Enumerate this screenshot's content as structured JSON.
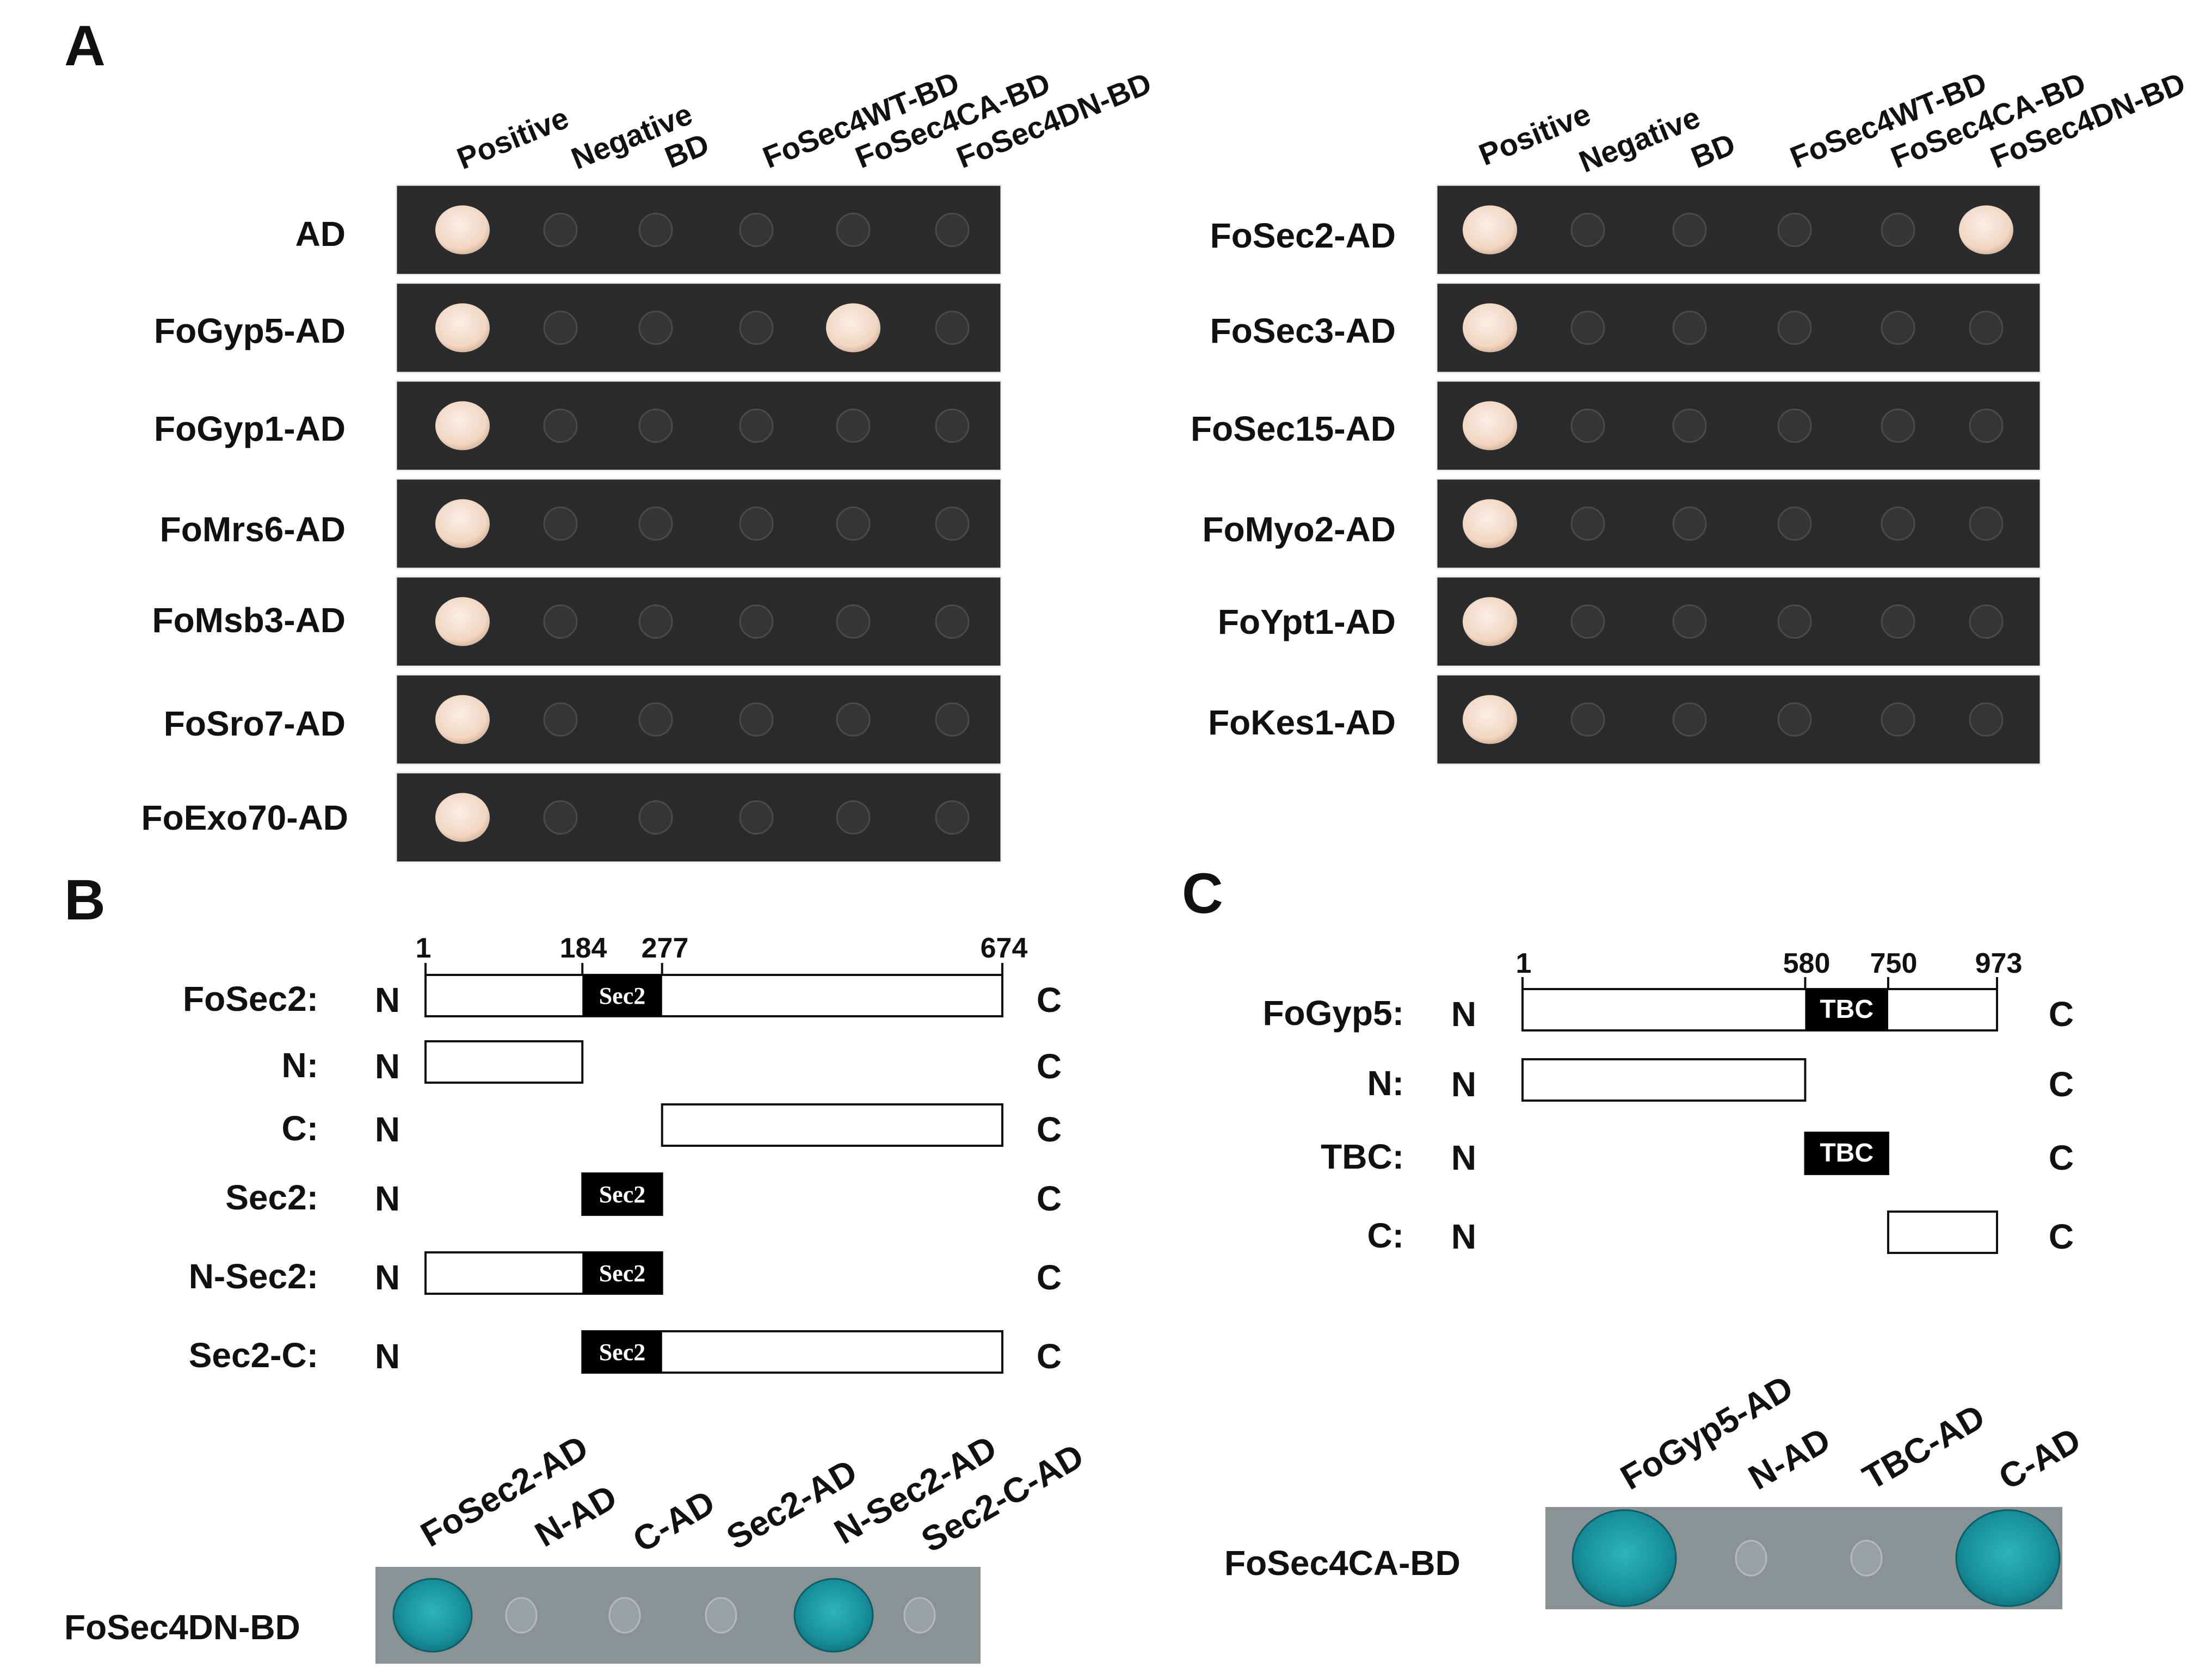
{
  "panels": {
    "A": {
      "letter": "A",
      "left_grid": {
        "columns": [
          "Positive",
          "Negative",
          "BD",
          "FoSec4WT-BD",
          "FoSec4CA-BD",
          "FoSec4DN-BD"
        ],
        "rows": [
          {
            "label": "AD",
            "growth": [
              1,
              0,
              0,
              0,
              0,
              0
            ]
          },
          {
            "label": "FoGyp5-AD",
            "growth": [
              1,
              0,
              0,
              0,
              1,
              0
            ]
          },
          {
            "label": "FoGyp1-AD",
            "growth": [
              1,
              0,
              0,
              0,
              0,
              0
            ]
          },
          {
            "label": "FoMrs6-AD",
            "growth": [
              1,
              0,
              0,
              0,
              0,
              0
            ]
          },
          {
            "label": "FoMsb3-AD",
            "growth": [
              1,
              0,
              0,
              0,
              0,
              0
            ]
          },
          {
            "label": "FoSro7-AD",
            "growth": [
              1,
              0,
              0,
              0,
              0,
              0
            ]
          },
          {
            "label": "FoExo70-AD",
            "growth": [
              1,
              0,
              0,
              0,
              0,
              0
            ]
          }
        ]
      },
      "right_grid": {
        "columns": [
          "Positive",
          "Negative",
          "BD",
          "FoSec4WT-BD",
          "FoSec4CA-BD",
          "FoSec4DN-BD"
        ],
        "rows": [
          {
            "label": "FoSec2-AD",
            "growth": [
              1,
              0,
              0,
              0,
              0,
              1
            ]
          },
          {
            "label": "FoSec3-AD",
            "growth": [
              1,
              0,
              0,
              0,
              0,
              0
            ]
          },
          {
            "label": "FoSec15-AD",
            "growth": [
              1,
              0,
              0,
              0,
              0,
              0
            ]
          },
          {
            "label": "FoMyo2-AD",
            "growth": [
              1,
              0,
              0,
              0,
              0,
              0
            ]
          },
          {
            "label": "FoYpt1-AD",
            "growth": [
              1,
              0,
              0,
              0,
              0,
              0
            ]
          },
          {
            "label": "FoKes1-AD",
            "growth": [
              1,
              0,
              0,
              0,
              0,
              0
            ]
          }
        ]
      }
    },
    "B": {
      "letter": "B",
      "positions": [
        "1",
        "184",
        "277",
        "674"
      ],
      "domain_name": "Sec2",
      "n_term": "N",
      "c_term": "C",
      "constructs": [
        {
          "label": "FoSec2:",
          "start": 1,
          "end": 674
        },
        {
          "label": "N:",
          "start": 1,
          "end": 184
        },
        {
          "label": "C:",
          "start": 277,
          "end": 674
        },
        {
          "label": "Sec2:",
          "start": 184,
          "end": 277
        },
        {
          "label": "N-Sec2:",
          "start": 1,
          "end": 277
        },
        {
          "label": "Sec2-C:",
          "start": 184,
          "end": 674
        }
      ],
      "assay": {
        "row_label": "FoSec4DN-BD",
        "columns": [
          "FoSec2-AD",
          "N-AD",
          "C-AD",
          "Sec2-AD",
          "N-Sec2-AD",
          "Sec2-C-AD"
        ],
        "growth": [
          1,
          0,
          0,
          0,
          1,
          0
        ]
      }
    },
    "C": {
      "letter": "C",
      "positions": [
        "1",
        "580",
        "750",
        "973"
      ],
      "domain_name": "TBC",
      "n_term": "N",
      "c_term": "C",
      "constructs": [
        {
          "label": "FoGyp5:",
          "start": 1,
          "end": 973
        },
        {
          "label": "N:",
          "start": 1,
          "end": 580
        },
        {
          "label": "TBC:",
          "start": 580,
          "end": 750
        },
        {
          "label": "C:",
          "start": 750,
          "end": 973
        }
      ],
      "assay": {
        "row_label": "FoSec4CA-BD",
        "columns": [
          "FoGyp5-AD",
          "N-AD",
          "TBC-AD",
          "C-AD"
        ],
        "growth": [
          1,
          0,
          0,
          1
        ]
      }
    }
  },
  "colors": {
    "plate": "#2a2b2c",
    "colony": "#f3dccb",
    "blue_colony": "#1f9aa6",
    "xgal_plate": "#8b9293"
  }
}
